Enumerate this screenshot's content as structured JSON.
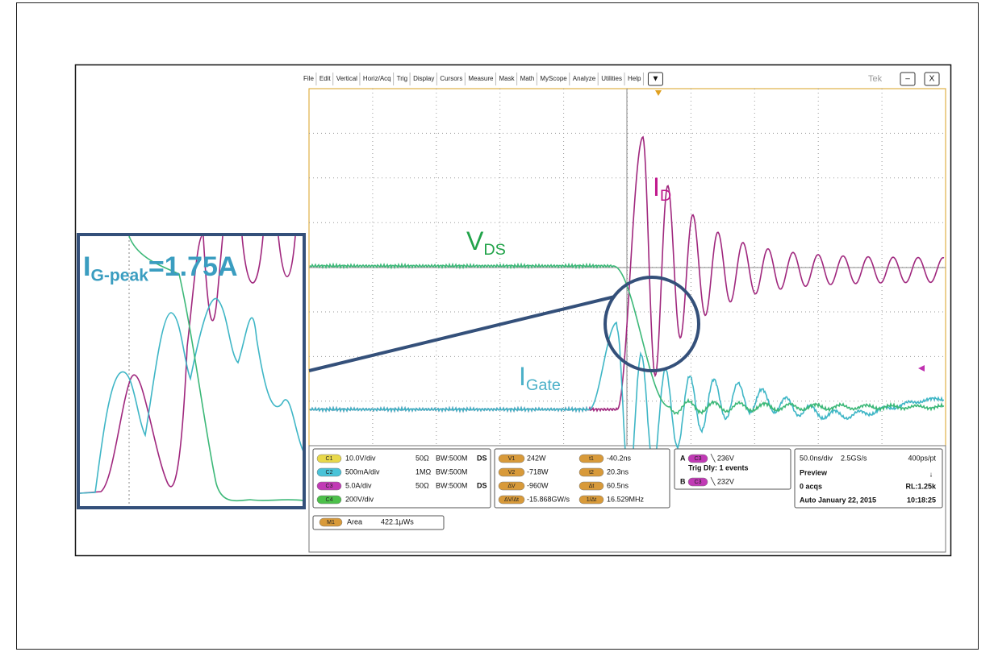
{
  "menu": {
    "items": [
      "File",
      "Edit",
      "Vertical",
      "Horiz/Acq",
      "Trig",
      "Display",
      "Cursors",
      "Measure",
      "Mask",
      "Math",
      "MyScope",
      "Analyze",
      "Utilities",
      "Help"
    ],
    "dropdown": "▼",
    "brand": "Tek",
    "minimize": "–",
    "close": "X"
  },
  "annotations": {
    "drain_current": {
      "main": "I",
      "sub": "D"
    },
    "vds": {
      "main": "V",
      "sub": "DS"
    },
    "gate": {
      "main": "I",
      "sub": "Gate"
    },
    "peak": {
      "main": "I",
      "sub": "G-peak",
      "rest": "=1.75A"
    }
  },
  "channels": [
    {
      "tag": "C1",
      "scale": "10.0V/div",
      "termination": "50Ω",
      "bandwidth": "BW:500M",
      "coupling": "DS"
    },
    {
      "tag": "C2",
      "scale": "500mA/div",
      "termination": "1MΩ",
      "bandwidth": "BW:500M"
    },
    {
      "tag": "C3",
      "scale": "5.0A/div",
      "termination": "50Ω",
      "bandwidth": "BW:500M",
      "coupling": "DS"
    },
    {
      "tag": "C4",
      "scale": "200V/div"
    }
  ],
  "cursors": [
    {
      "tag": "V1",
      "value": "242W",
      "tag2": "t1",
      "value2": "-40.2ns"
    },
    {
      "tag": "V2",
      "value": "-718W",
      "tag2": "t2",
      "value2": "20.3ns"
    },
    {
      "tag": "ΔV",
      "value": "-960W",
      "tag2": "Δt",
      "value2": "60.5ns"
    },
    {
      "tag": "ΔV/Δt",
      "value": "-15.868GW/s",
      "tag2": "1/Δt",
      "value2": "16.529MHz"
    }
  ],
  "trigger": {
    "a": {
      "label": "A",
      "source": "C3",
      "level": "╲ 236V"
    },
    "delay": "Trig Dly: 1 events",
    "b": {
      "label": "B",
      "source": "C3",
      "level": "╲ 232V"
    }
  },
  "horizontal": {
    "scale": "50.0ns/div",
    "rate": "2.5GS/s",
    "resolution": "400ps/pt",
    "mode": "Preview",
    "arrow": "↓",
    "acqs": "0 acqs",
    "record": "RL:1.25k",
    "run": "Auto",
    "date": "January 22, 2015",
    "time": "10:18:25"
  },
  "math": {
    "tag": "M1",
    "name": "Area",
    "value": "422.1μWs"
  }
}
